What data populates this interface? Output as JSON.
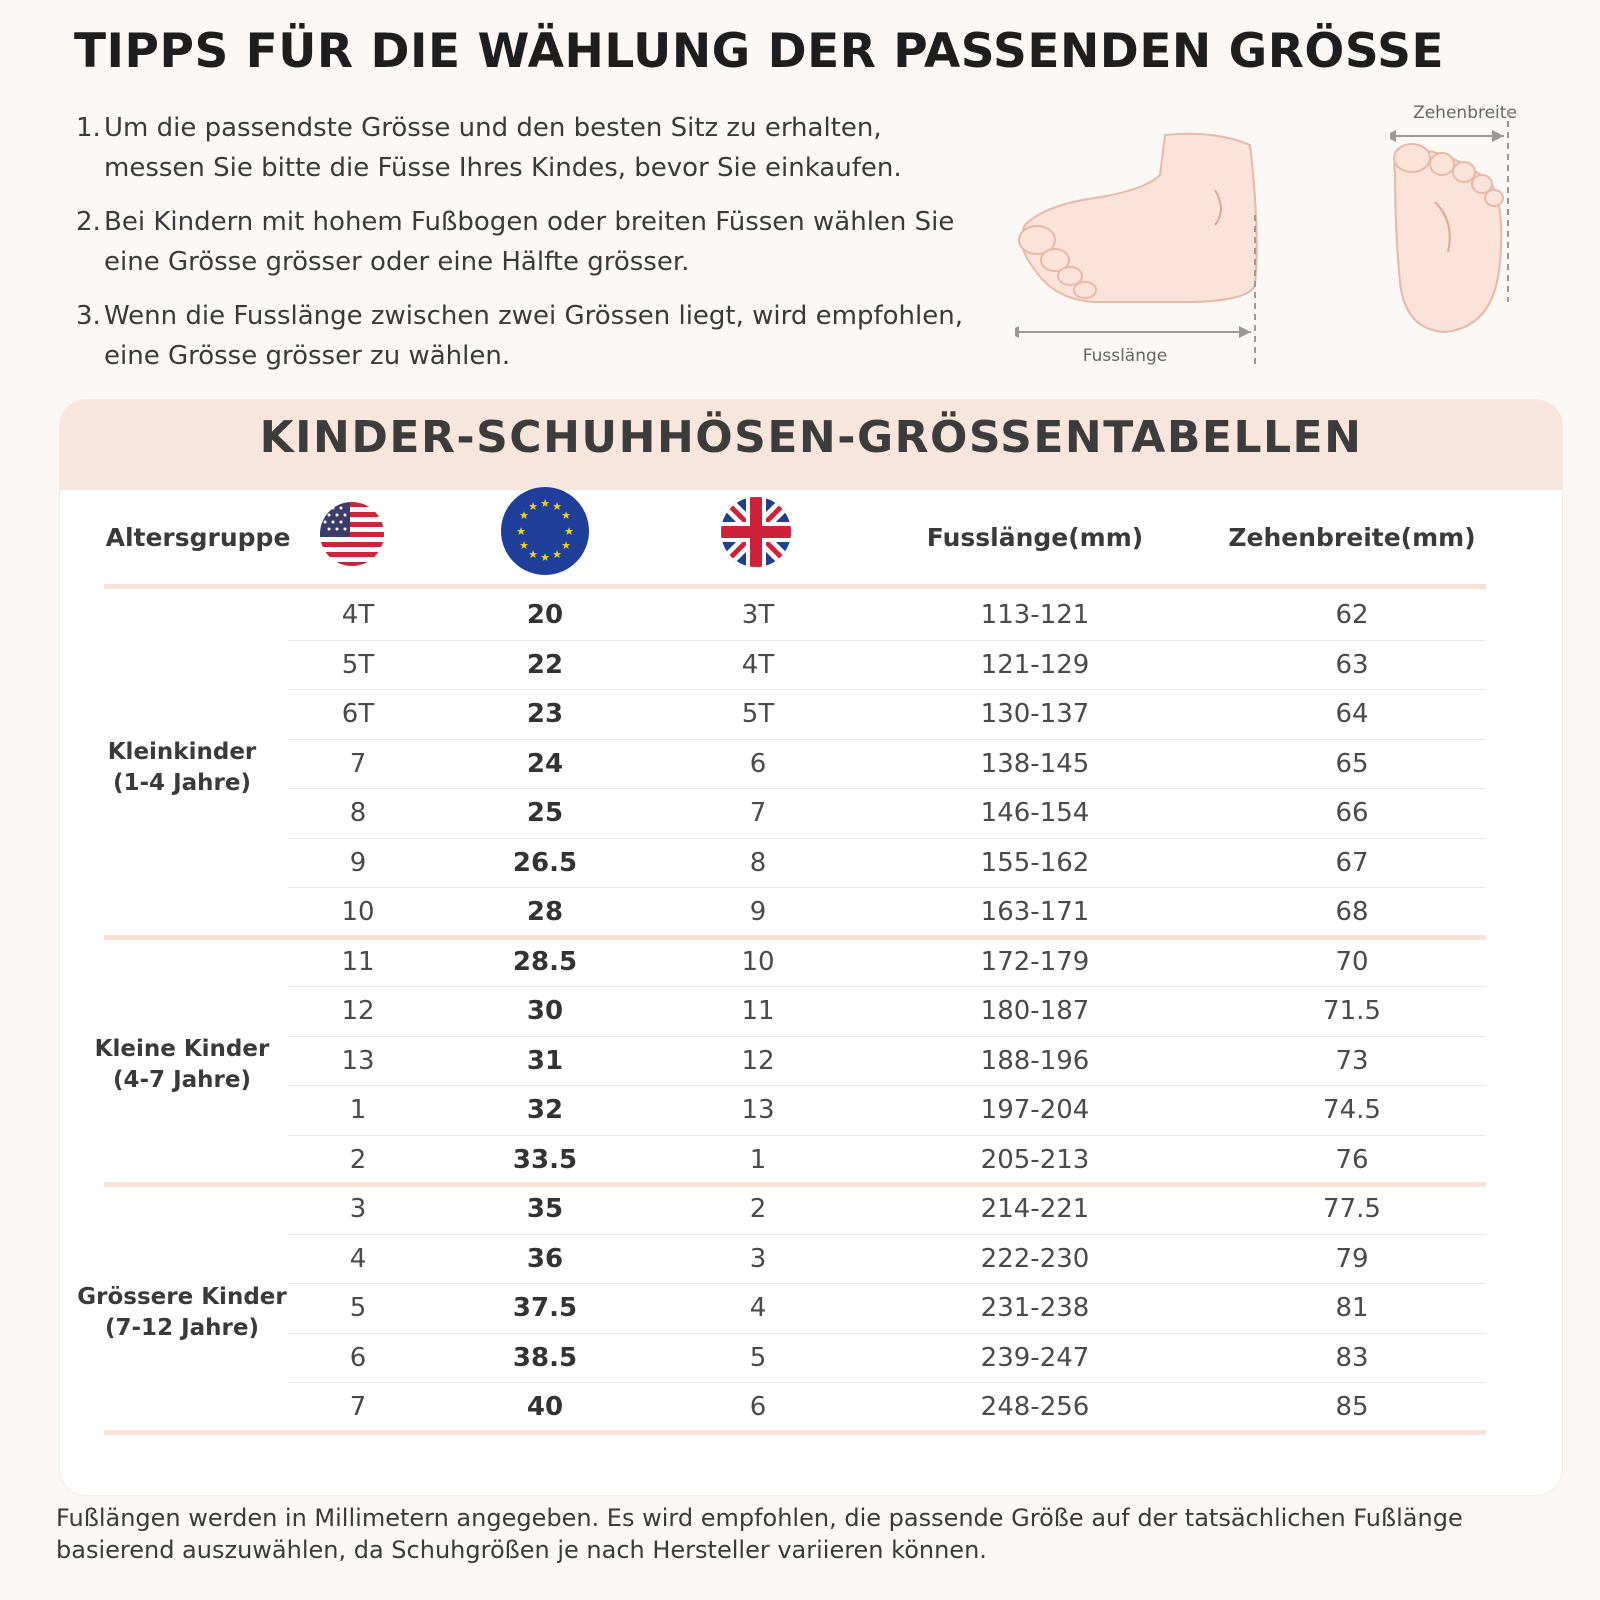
{
  "title": "TIPPS FÜR DIE WÄHLUNG DER PASSENDEN GRÖSSE",
  "tips": [
    {
      "num": "1.",
      "text": "Um die passendste Grösse und den besten Sitz zu erhalten, messen Sie bitte die Füsse Ihres Kindes, bevor Sie einkaufen."
    },
    {
      "num": "2.",
      "text": "Bei Kindern mit hohem Fußbogen oder breiten Füssen wählen Sie eine Grösse grösser oder eine Hälfte grösser."
    },
    {
      "num": "3.",
      "text": "Wenn die Fusslänge zwischen zwei Grössen liegt, wird empfohlen, eine Grösse grösser zu wählen."
    }
  ],
  "diagram": {
    "foot_length_label": "Fusslänge",
    "toe_width_label": "Zehenbreite"
  },
  "table": {
    "title": "KINDER-SCHUHHÖSEN-GRÖSSENTABELLEN",
    "headers": {
      "age": "Altersgruppe",
      "us_flag": "us-flag-icon",
      "eu_flag": "eu-flag-icon",
      "uk_flag": "uk-flag-icon",
      "length": "Fusslänge(mm)",
      "width": "Zehenbreite(mm)"
    },
    "groups": [
      {
        "label": "Kleinkinder\n(1-4 Jahre)",
        "rows": [
          {
            "us": "4T",
            "eu": "20",
            "uk": "3T",
            "length": "113-121",
            "width": "62"
          },
          {
            "us": "5T",
            "eu": "22",
            "uk": "4T",
            "length": "121-129",
            "width": "63"
          },
          {
            "us": "6T",
            "eu": "23",
            "uk": "5T",
            "length": "130-137",
            "width": "64"
          },
          {
            "us": "7",
            "eu": "24",
            "uk": "6",
            "length": "138-145",
            "width": "65"
          },
          {
            "us": "8",
            "eu": "25",
            "uk": "7",
            "length": "146-154",
            "width": "66"
          },
          {
            "us": "9",
            "eu": "26.5",
            "uk": "8",
            "length": "155-162",
            "width": "67"
          },
          {
            "us": "10",
            "eu": "28",
            "uk": "9",
            "length": "163-171",
            "width": "68"
          }
        ]
      },
      {
        "label": "Kleine Kinder\n(4-7 Jahre)",
        "rows": [
          {
            "us": "11",
            "eu": "28.5",
            "uk": "10",
            "length": "172-179",
            "width": "70"
          },
          {
            "us": "12",
            "eu": "30",
            "uk": "11",
            "length": "180-187",
            "width": "71.5"
          },
          {
            "us": "13",
            "eu": "31",
            "uk": "12",
            "length": "188-196",
            "width": "73"
          },
          {
            "us": "1",
            "eu": "32",
            "uk": "13",
            "length": "197-204",
            "width": "74.5"
          },
          {
            "us": "2",
            "eu": "33.5",
            "uk": "1",
            "length": "205-213",
            "width": "76"
          }
        ]
      },
      {
        "label": "Grössere Kinder\n(7-12 Jahre)",
        "rows": [
          {
            "us": "3",
            "eu": "35",
            "uk": "2",
            "length": "214-221",
            "width": "77.5"
          },
          {
            "us": "4",
            "eu": "36",
            "uk": "3",
            "length": "222-230",
            "width": "79"
          },
          {
            "us": "5",
            "eu": "37.5",
            "uk": "4",
            "length": "231-238",
            "width": "81"
          },
          {
            "us": "6",
            "eu": "38.5",
            "uk": "5",
            "length": "239-247",
            "width": "83"
          },
          {
            "us": "7",
            "eu": "40",
            "uk": "6",
            "length": "248-256",
            "width": "85"
          }
        ]
      }
    ]
  },
  "footnote": "Fußlängen werden in Millimetern angegeben. Es wird empfohlen, die passende Größe auf der tatsächlichen Fußlänge basierend auszuwählen, da Schuhgrößen je nach Hersteller variieren können.",
  "colors": {
    "accent_band": "#f8e5dc",
    "divider": "#f8e1d6",
    "skin": "#fbe3da",
    "skin_outline": "#e8b8a8"
  }
}
